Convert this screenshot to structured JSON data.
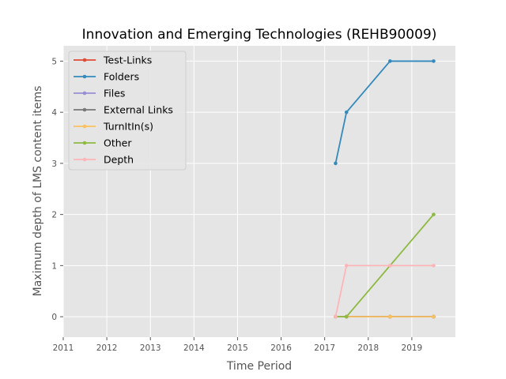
{
  "chart_data": {
    "type": "line",
    "title": "Innovation and Emerging Technologies (REHB90009)",
    "xlabel": "Time Period",
    "ylabel": "Maximum depth of LMS content items",
    "xlim": [
      2011,
      2020
    ],
    "ylim": [
      -0.4,
      5.3
    ],
    "x_ticks": [
      "2011",
      "2012",
      "2013",
      "2014",
      "2015",
      "2016",
      "2017",
      "2018",
      "2019"
    ],
    "y_ticks": [
      "0",
      "1",
      "2",
      "3",
      "4",
      "5"
    ],
    "grid": true,
    "legend_position": "upper-left",
    "x": [
      2017.25,
      2017.5,
      2018.5,
      2019.5
    ],
    "series": [
      {
        "name": "Test-Links",
        "color": "#E24A33",
        "values": [
          0,
          0,
          0,
          0
        ]
      },
      {
        "name": "Folders",
        "color": "#348ABD",
        "values": [
          3,
          4,
          5,
          5
        ]
      },
      {
        "name": "Files",
        "color": "#988ED5",
        "values": [
          0,
          0,
          0,
          0
        ]
      },
      {
        "name": "External Links",
        "color": "#777777",
        "values": [
          0,
          0,
          0,
          0
        ]
      },
      {
        "name": "TurnItIn(s)",
        "color": "#FBC15E",
        "values": [
          0,
          0,
          0,
          0
        ]
      },
      {
        "name": "Other",
        "color": "#8EBA42",
        "values": [
          0,
          0,
          1,
          2
        ]
      },
      {
        "name": "Depth",
        "color": "#FFB5B8",
        "values": [
          0,
          1,
          1,
          1
        ]
      }
    ]
  }
}
